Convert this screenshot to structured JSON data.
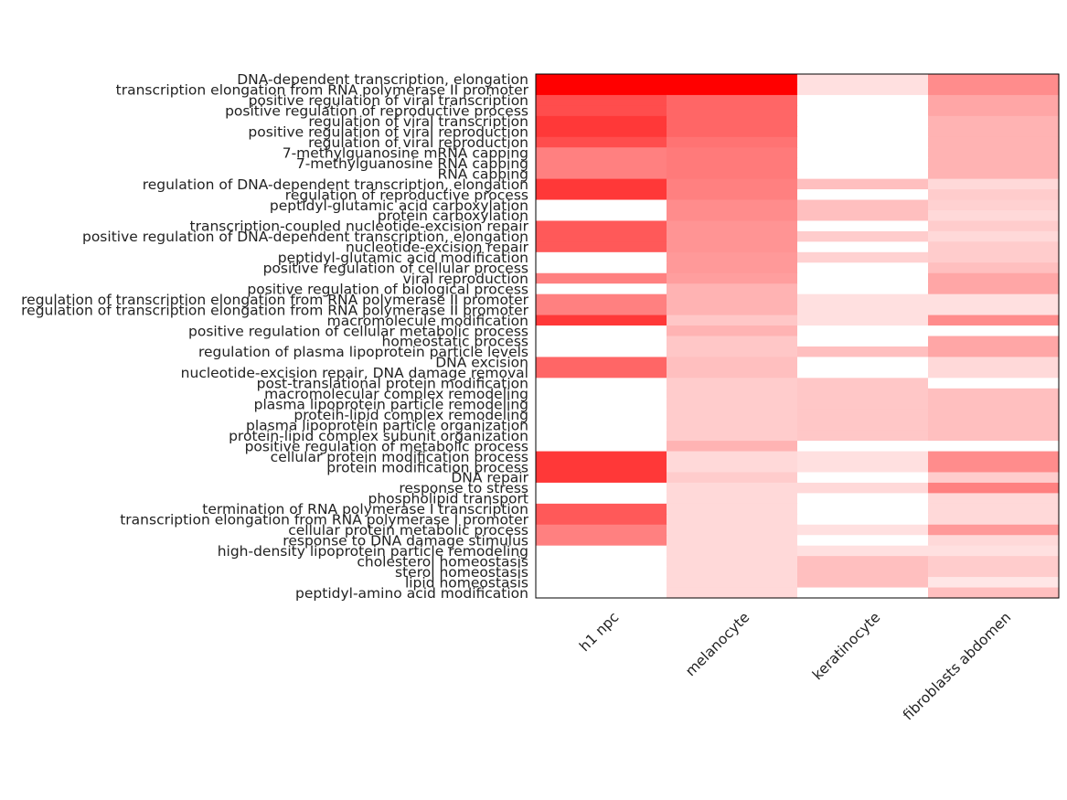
{
  "chart_data": {
    "type": "heatmap",
    "title": "",
    "xlabel": "",
    "ylabel": "",
    "columns": [
      "h1 npc",
      "melanocyte",
      "keratinocyte",
      "fibroblasts abdomen"
    ],
    "rows": [
      "DNA-dependent transcription, elongation",
      "transcription elongation from RNA polymerase II promoter",
      "positive regulation of viral transcription",
      "positive regulation of reproductive process",
      "regulation of viral transcription",
      "positive regulation of viral reproduction",
      "regulation of viral reproduction",
      "7-methylguanosine mRNA capping",
      "7-methylguanosine RNA capping",
      "RNA capping",
      "regulation of DNA-dependent transcription, elongation",
      "regulation of reproductive process",
      "peptidyl-glutamic acid carboxylation",
      "protein carboxylation",
      "transcription-coupled nucleotide-excision repair",
      "positive regulation of DNA-dependent transcription, elongation",
      "nucleotide-excision repair",
      "peptidyl-glutamic acid modification",
      "positive regulation of cellular process",
      "viral reproduction",
      "positive regulation of biological process",
      "regulation of transcription elongation from RNA polymerase II promoter",
      "regulation of transcription elongation from RNA polymerase II promoter",
      "macromolecule modification",
      "positive regulation of cellular metabolic process",
      "homeostatic process",
      "regulation of plasma lipoprotein particle levels",
      "DNA excision",
      "nucleotide-excision repair, DNA damage removal",
      "post-translational protein modification",
      "macromolecular complex remodeling",
      "plasma lipoprotein particle remodeling",
      "protein-lipid complex remodeling",
      "plasma lipoprotein particle organization",
      "protein-lipid complex subunit organization",
      "positive regulation of metabolic process",
      "cellular protein modification process",
      "protein modification process",
      "DNA repair",
      "response to stress",
      "phospholipid transport",
      "termination of RNA polymerase I transcription",
      "transcription elongation from RNA polymerase I promoter",
      "cellular protein metabolic process",
      "response to DNA damage stimulus",
      "high-density lipoprotein particle remodeling",
      "cholesterol homeostasis",
      "sterol homeostasis",
      "lipid homeostasis",
      "peptidyl-amino acid modification"
    ],
    "values": [
      [
        1.0,
        1.0,
        0.12,
        0.45
      ],
      [
        1.0,
        1.0,
        0.12,
        0.45
      ],
      [
        0.7,
        0.6,
        0.0,
        0.35
      ],
      [
        0.7,
        0.6,
        0.0,
        0.35
      ],
      [
        0.78,
        0.6,
        0.0,
        0.3
      ],
      [
        0.78,
        0.6,
        0.0,
        0.3
      ],
      [
        0.7,
        0.55,
        0.0,
        0.3
      ],
      [
        0.5,
        0.52,
        0.0,
        0.3
      ],
      [
        0.5,
        0.52,
        0.0,
        0.3
      ],
      [
        0.5,
        0.52,
        0.0,
        0.3
      ],
      [
        0.78,
        0.5,
        0.25,
        0.15
      ],
      [
        0.78,
        0.5,
        0.0,
        0.2
      ],
      [
        0.0,
        0.45,
        0.25,
        0.18
      ],
      [
        0.0,
        0.45,
        0.25,
        0.15
      ],
      [
        0.65,
        0.42,
        0.0,
        0.2
      ],
      [
        0.65,
        0.42,
        0.2,
        0.15
      ],
      [
        0.65,
        0.42,
        0.0,
        0.2
      ],
      [
        0.0,
        0.4,
        0.18,
        0.2
      ],
      [
        0.0,
        0.4,
        0.0,
        0.25
      ],
      [
        0.5,
        0.38,
        0.0,
        0.35
      ],
      [
        0.0,
        0.3,
        0.0,
        0.35
      ],
      [
        0.5,
        0.3,
        0.12,
        0.12
      ],
      [
        0.5,
        0.3,
        0.12,
        0.12
      ],
      [
        0.78,
        0.22,
        0.12,
        0.45
      ],
      [
        0.0,
        0.3,
        0.0,
        0.0
      ],
      [
        0.0,
        0.22,
        0.0,
        0.35
      ],
      [
        0.0,
        0.22,
        0.25,
        0.35
      ],
      [
        0.6,
        0.25,
        0.0,
        0.15
      ],
      [
        0.6,
        0.25,
        0.0,
        0.15
      ],
      [
        0.0,
        0.2,
        0.22,
        0.0
      ],
      [
        0.0,
        0.2,
        0.22,
        0.25
      ],
      [
        0.0,
        0.2,
        0.22,
        0.25
      ],
      [
        0.0,
        0.2,
        0.22,
        0.25
      ],
      [
        0.0,
        0.2,
        0.22,
        0.25
      ],
      [
        0.0,
        0.2,
        0.22,
        0.25
      ],
      [
        0.0,
        0.3,
        0.0,
        0.0
      ],
      [
        0.78,
        0.15,
        0.12,
        0.45
      ],
      [
        0.78,
        0.15,
        0.12,
        0.45
      ],
      [
        0.78,
        0.2,
        0.0,
        0.2
      ],
      [
        0.0,
        0.15,
        0.15,
        0.5
      ],
      [
        0.0,
        0.15,
        0.0,
        0.15
      ],
      [
        0.65,
        0.15,
        0.0,
        0.15
      ],
      [
        0.65,
        0.15,
        0.0,
        0.15
      ],
      [
        0.5,
        0.15,
        0.12,
        0.4
      ],
      [
        0.5,
        0.15,
        0.0,
        0.15
      ],
      [
        0.0,
        0.15,
        0.12,
        0.12
      ],
      [
        0.0,
        0.15,
        0.25,
        0.2
      ],
      [
        0.0,
        0.15,
        0.25,
        0.2
      ],
      [
        0.0,
        0.15,
        0.25,
        0.1
      ],
      [
        0.0,
        0.15,
        0.0,
        0.25
      ]
    ],
    "color_low": "#ffffff",
    "color_high": "#ff0000",
    "grid": false,
    "legend": "none"
  }
}
